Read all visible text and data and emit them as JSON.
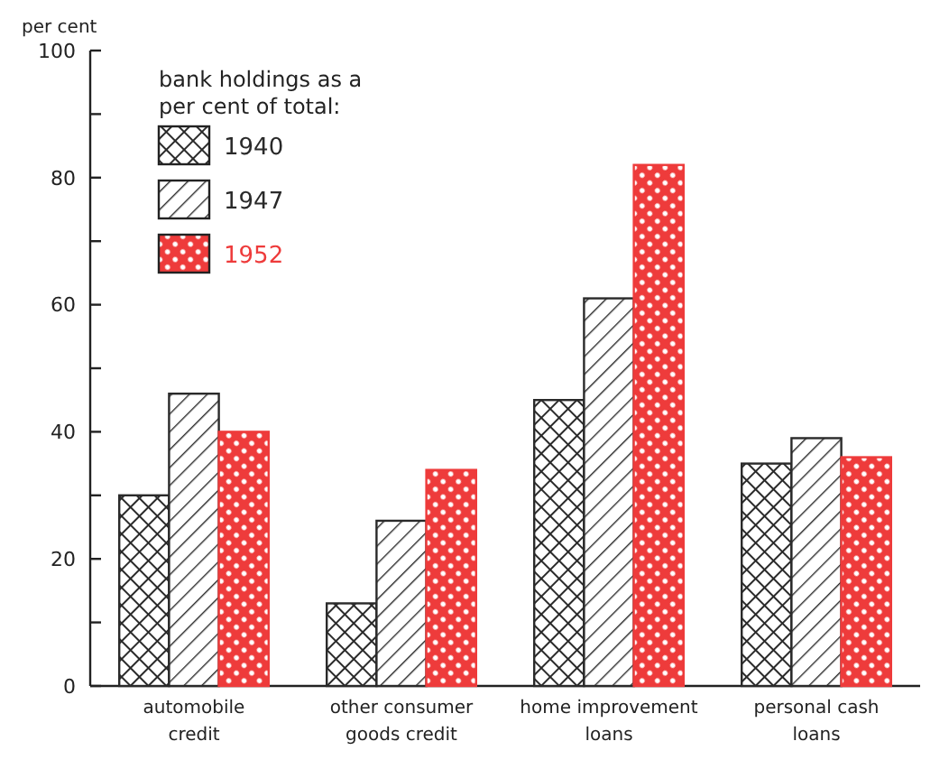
{
  "chart_data": {
    "type": "bar",
    "ylabel": "per cent",
    "legend_title": "bank holdings as a\nper cent of total:",
    "legend": "top left",
    "grid": false,
    "categories": [
      "automobile\ncredit",
      "other consumer\ngoods credit",
      "home improvement\nloans",
      "personal cash\nloans"
    ],
    "ylim": [
      0,
      100
    ],
    "yticks": [
      0,
      {
        "value": 10,
        "label": null
      },
      20,
      {
        "value": 30,
        "label": null
      },
      40,
      {
        "value": 50,
        "label": null
      },
      60,
      {
        "value": 70,
        "label": null
      },
      80,
      {
        "value": 90,
        "label": null
      },
      100
    ],
    "series": [
      {
        "name": "1940",
        "color": "#2a2a2a",
        "values": [
          30,
          13,
          45,
          35
        ]
      },
      {
        "name": "1947",
        "color": "#2a2a2a",
        "values": [
          46,
          26,
          61,
          39
        ]
      },
      {
        "name": "1952",
        "color": "#ee3b3b",
        "values": [
          40,
          34,
          82,
          36
        ]
      }
    ]
  }
}
